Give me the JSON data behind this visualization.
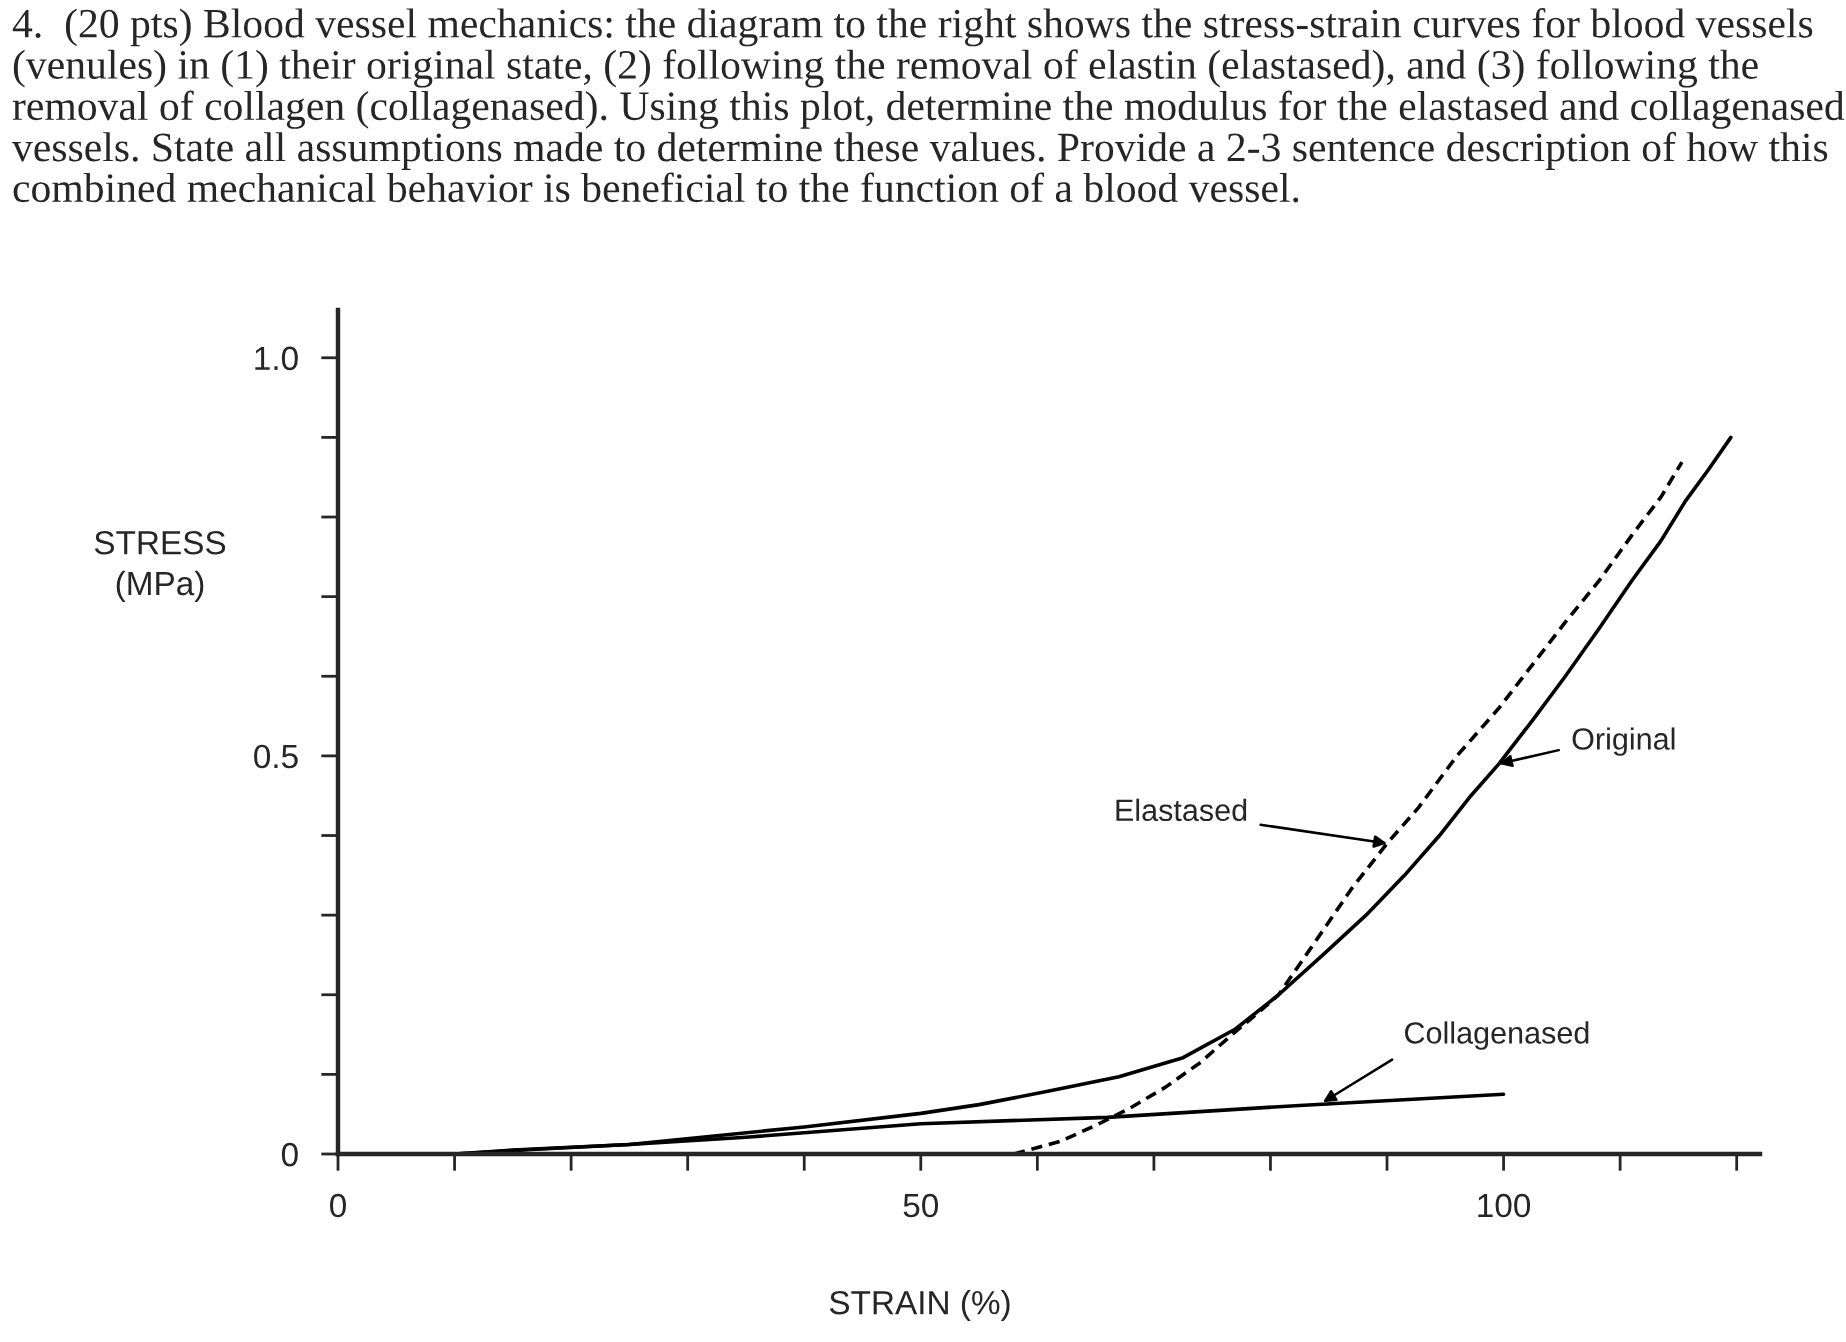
{
  "chart_data": {
    "type": "line",
    "title": "4.  (20 pts) Blood vessel mechanics: the diagram to the right shows the stress-strain curves for blood vessels (venules) in (1) their original state, (2) following the removal of elastin (elastased), and (3) following the removal of collagen (collagenased). Using this plot, determine the modulus for the elastased and collagenased vessels. State all assumptions made to determine these values. Provide a 2-3 sentence description of how this combined mechanical behavior is beneficial to the function of a blood vessel.",
    "xlabel": "STRAIN (%)",
    "ylabel": "STRESS\n(MPa)",
    "xlim": [
      0,
      122
    ],
    "ylim": [
      0,
      1.06
    ],
    "xticks": [
      0,
      {
        "value": 10,
        "label": null
      },
      {
        "value": 20,
        "label": null
      },
      {
        "value": 30,
        "label": null
      },
      {
        "value": 40,
        "label": null
      },
      50,
      {
        "value": 60,
        "label": null
      },
      {
        "value": 70,
        "label": null
      },
      {
        "value": 80,
        "label": null
      },
      {
        "value": 90,
        "label": null
      },
      100,
      {
        "value": 110,
        "label": null
      },
      {
        "value": 120,
        "label": null
      }
    ],
    "yticks": [
      0,
      {
        "value": 0.1,
        "label": null
      },
      {
        "value": 0.2,
        "label": null
      },
      {
        "value": 0.3,
        "label": null
      },
      {
        "value": 0.4,
        "label": null
      },
      0.5,
      {
        "value": 0.6,
        "label": null
      },
      {
        "value": 0.7,
        "label": null
      },
      {
        "value": 0.8,
        "label": null
      },
      {
        "value": 0.9,
        "label": null
      },
      {
        "value": 1,
        "label": "1.0"
      }
    ],
    "marker": "none",
    "legend": false,
    "grid": false,
    "series": [
      {
        "color": "#000000",
        "line_style": "solid",
        "x": [
          0,
          10,
          15,
          25,
          40,
          50,
          55,
          61,
          67,
          72.5,
          77,
          80.7,
          84.5,
          88.2,
          91.5,
          94.5,
          97.2,
          99.6,
          102.5,
          105.3,
          108.2,
          111,
          113.5,
          115.6,
          117.6,
          119.5
        ],
        "values": [
          0,
          0,
          0.005,
          0.012,
          0.034,
          0.051,
          0.062,
          0.079,
          0.097,
          0.121,
          0.157,
          0.2,
          0.25,
          0.3,
          0.35,
          0.4,
          0.45,
          0.49,
          0.545,
          0.6,
          0.66,
          0.72,
          0.77,
          0.82,
          0.86,
          0.9
        ]
      },
      {
        "color": "#000000",
        "line_style": "dashed",
        "x": [
          58,
          62,
          65.3,
          68,
          71,
          74,
          76.7,
          79,
          80.7,
          84,
          87,
          90,
          92.7,
          96,
          99.6,
          102.5,
          105.3,
          108.2,
          111,
          113.5,
          115.3
        ],
        "values": [
          0,
          0.016,
          0.038,
          0.058,
          0.084,
          0.115,
          0.15,
          0.178,
          0.2,
          0.27,
          0.334,
          0.39,
          0.435,
          0.5,
          0.56,
          0.615,
          0.668,
          0.72,
          0.777,
          0.825,
          0.869
        ]
      },
      {
        "color": "#000000",
        "line_style": "solid",
        "x": [
          0,
          10,
          17,
          25,
          35,
          50,
          66,
          82.5,
          100
        ],
        "values": [
          0,
          0,
          0.006,
          0.012,
          0.021,
          0.038,
          0.046,
          0.061,
          0.075
        ]
      }
    ],
    "annotations": [
      {
        "text": "Elastased",
        "x": 90,
        "y": 0.39
      },
      {
        "text": "Original",
        "x": 99.6,
        "y": 0.49
      },
      {
        "text": "Collagenased",
        "x": 84.5,
        "y": 0.065
      }
    ]
  }
}
